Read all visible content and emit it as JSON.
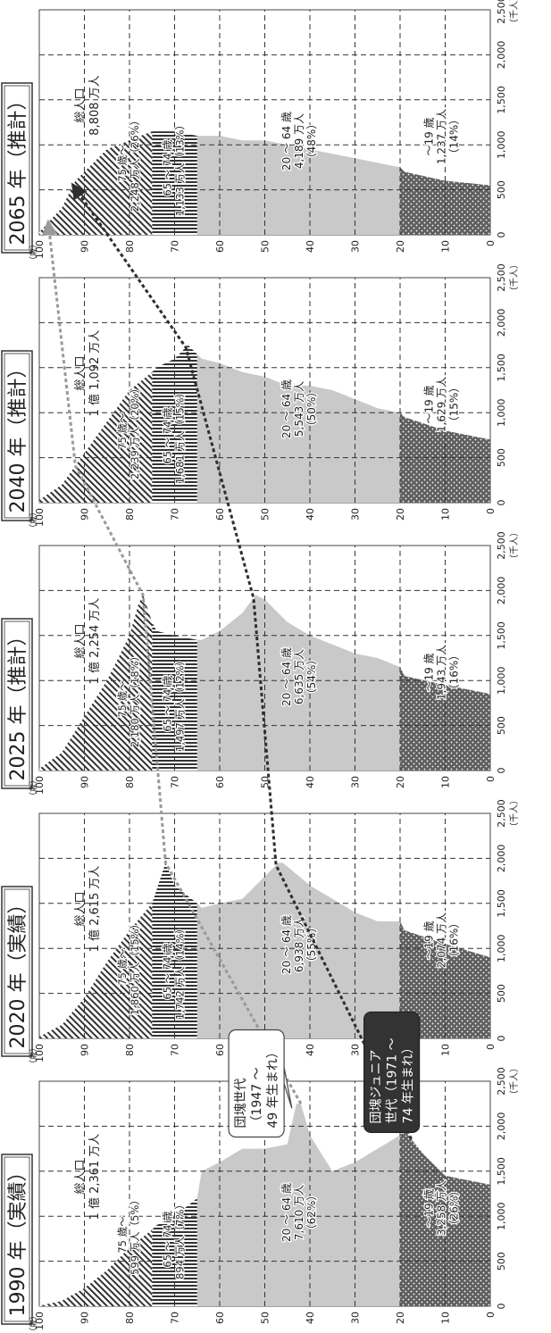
{
  "units": {
    "age": "（歳）",
    "thousand": "（千人）"
  },
  "x_ticks": [
    "0",
    "500",
    "1,000",
    "1,500",
    "2,000",
    "2,500"
  ],
  "y_ticks": [
    "0",
    "10",
    "20",
    "30",
    "40",
    "50",
    "60",
    "70",
    "80",
    "90",
    "100"
  ],
  "callouts": {
    "dankai": [
      "団塊世代",
      "（1947 ～",
      "49 年生まれ）"
    ],
    "dankai_junior": [
      "団塊ジュニア",
      "世代（1971 ～",
      "74 年生まれ）"
    ]
  },
  "colors": {
    "under20": "#5f5f5f",
    "working": "#c9c9c9",
    "young_old": "#8a8a8a",
    "old_old": "#6f6f6f",
    "arrow_dankai": "#9a9a9a",
    "arrow_junior": "#2e2e2e"
  },
  "chart_data": [
    {
      "type": "area",
      "title": "1990 年（実績）",
      "total": [
        "総人口",
        "1 億 2,361 万人"
      ],
      "xlim": [
        0,
        2500
      ],
      "ylim": [
        0,
        100
      ],
      "profile": {
        "ages": [
          0,
          10,
          15,
          19,
          20,
          25,
          30,
          35,
          40,
          42,
          43,
          45,
          50,
          55,
          60,
          64,
          65,
          70,
          74,
          75,
          80,
          85,
          90,
          95,
          100
        ],
        "pop": [
          1350,
          1450,
          1700,
          1950,
          1900,
          1750,
          1600,
          1500,
          1900,
          2250,
          2250,
          1800,
          1750,
          1750,
          1600,
          1500,
          1200,
          1000,
          900,
          850,
          650,
          400,
          200,
          60,
          5
        ]
      },
      "segments": [
        {
          "label": [
            "～19 歳",
            "3,258 万人",
            "（26%）"
          ],
          "age_range": [
            0,
            20
          ]
        },
        {
          "label": [
            "20 ～ 64 歳",
            "7,610 万人",
            "（62%）"
          ],
          "age_range": [
            20,
            65
          ]
        },
        {
          "label": [
            "65 ～ 74 歳",
            "894 万人（7%）"
          ],
          "age_range": [
            65,
            75
          ]
        },
        {
          "label": [
            "75 歳～",
            "599 万人（5%）"
          ],
          "age_range": [
            75,
            100
          ]
        }
      ]
    },
    {
      "type": "area",
      "title": "2020 年（実績）",
      "total": [
        "総人口",
        "1 億 2,615 万人"
      ],
      "xlim": [
        0,
        2500
      ],
      "ylim": [
        0,
        100
      ],
      "profile": {
        "ages": [
          0,
          10,
          19,
          20,
          25,
          30,
          35,
          40,
          46,
          47,
          50,
          55,
          60,
          64,
          65,
          70,
          72,
          74,
          75,
          80,
          85,
          90,
          95,
          100
        ],
        "pop": [
          900,
          1050,
          1200,
          1300,
          1300,
          1400,
          1550,
          1700,
          1950,
          1950,
          1800,
          1550,
          1500,
          1450,
          1500,
          1700,
          1950,
          1650,
          1500,
          1200,
          850,
          450,
          150,
          20
        ]
      },
      "segments": [
        {
          "label": [
            "～19 歳",
            "2,074 万人",
            "（16%）"
          ],
          "age_range": [
            0,
            20
          ]
        },
        {
          "label": [
            "20 ～ 64 歳",
            "6,938 万人",
            "（55%）"
          ],
          "age_range": [
            20,
            65
          ]
        },
        {
          "label": [
            "65 ～ 74 歳",
            "1,742 万人（14%）"
          ],
          "age_range": [
            65,
            75
          ]
        },
        {
          "label": [
            "75 歳～",
            "1,860 万人（15%）"
          ],
          "age_range": [
            75,
            100
          ]
        }
      ]
    },
    {
      "type": "area",
      "title": "2025 年（推計）",
      "total": [
        "総人口",
        "1 億 2,254 万人"
      ],
      "xlim": [
        0,
        2500
      ],
      "ylim": [
        0,
        100
      ],
      "profile": {
        "ages": [
          0,
          10,
          19,
          20,
          25,
          30,
          35,
          40,
          45,
          50,
          52,
          55,
          60,
          64,
          65,
          70,
          74,
          75,
          77,
          78,
          80,
          85,
          90,
          95,
          100
        ],
        "pop": [
          850,
          950,
          1050,
          1150,
          1250,
          1300,
          1400,
          1500,
          1650,
          1900,
          1950,
          1750,
          1550,
          1450,
          1450,
          1500,
          1550,
          1650,
          1950,
          1850,
          1500,
          1000,
          600,
          200,
          20
        ]
      },
      "segments": [
        {
          "label": [
            "～19 歳",
            "1,943 万人",
            "（16%）"
          ],
          "age_range": [
            0,
            20
          ]
        },
        {
          "label": [
            "20 ～ 64 歳",
            "6,635 万人",
            "（54%）"
          ],
          "age_range": [
            20,
            65
          ]
        },
        {
          "label": [
            "65 ～ 74 歳",
            "1,497 万人（12%）"
          ],
          "age_range": [
            65,
            75
          ]
        },
        {
          "label": [
            "75 歳～",
            "2,180 万人（18%）"
          ],
          "age_range": [
            75,
            100
          ]
        }
      ]
    },
    {
      "type": "area",
      "title": "2040 年（推計）",
      "total": [
        "総人口",
        "1 億 1,092 万人"
      ],
      "xlim": [
        0,
        2500
      ],
      "ylim": [
        0,
        100
      ],
      "profile": {
        "ages": [
          0,
          10,
          19,
          20,
          25,
          30,
          35,
          40,
          45,
          50,
          55,
          60,
          64,
          65,
          67,
          70,
          74,
          75,
          80,
          85,
          90,
          95,
          100
        ],
        "pop": [
          700,
          800,
          950,
          1000,
          1050,
          1150,
          1250,
          1300,
          1300,
          1400,
          1450,
          1550,
          1600,
          1650,
          1750,
          1600,
          1500,
          1450,
          1250,
          900,
          550,
          200,
          30
        ]
      },
      "segments": [
        {
          "label": [
            "～19 歳",
            "1,629 万人",
            "（15%）"
          ],
          "age_range": [
            0,
            20
          ]
        },
        {
          "label": [
            "20 ～ 64 歳",
            "5,543 万人",
            "（50%）"
          ],
          "age_range": [
            20,
            65
          ]
        },
        {
          "label": [
            "65 ～ 74 歳",
            "1,681 万人（15%）"
          ],
          "age_range": [
            65,
            75
          ]
        },
        {
          "label": [
            "75 歳～",
            "2,239 万人（20%）"
          ],
          "age_range": [
            75,
            100
          ]
        }
      ]
    },
    {
      "type": "area",
      "title": "2065 年（推計）",
      "total": [
        "総人口",
        "8,808 万人"
      ],
      "xlim": [
        0,
        2500
      ],
      "ylim": [
        0,
        100
      ],
      "profile": {
        "ages": [
          0,
          10,
          19,
          20,
          25,
          30,
          35,
          40,
          45,
          50,
          55,
          60,
          64,
          65,
          70,
          74,
          75,
          80,
          85,
          90,
          92,
          95,
          100
        ],
        "pop": [
          550,
          600,
          700,
          750,
          800,
          850,
          900,
          950,
          1000,
          1050,
          1050,
          1100,
          1100,
          1100,
          1150,
          1150,
          1150,
          1050,
          950,
          700,
          600,
          300,
          30
        ]
      },
      "segments": [
        {
          "label": [
            "～19 歳",
            "1,237 万人",
            "（14%）"
          ],
          "age_range": [
            0,
            20
          ]
        },
        {
          "label": [
            "20 ～ 64 歳",
            "4,189 万人",
            "（48%）"
          ],
          "age_range": [
            20,
            65
          ]
        },
        {
          "label": [
            "65 ～ 74 歳",
            "1,133 万人（13%）"
          ],
          "age_range": [
            65,
            75
          ]
        },
        {
          "label": [
            "75 歳～",
            "2,248 万人（26%）"
          ],
          "age_range": [
            75,
            100
          ]
        }
      ]
    }
  ]
}
